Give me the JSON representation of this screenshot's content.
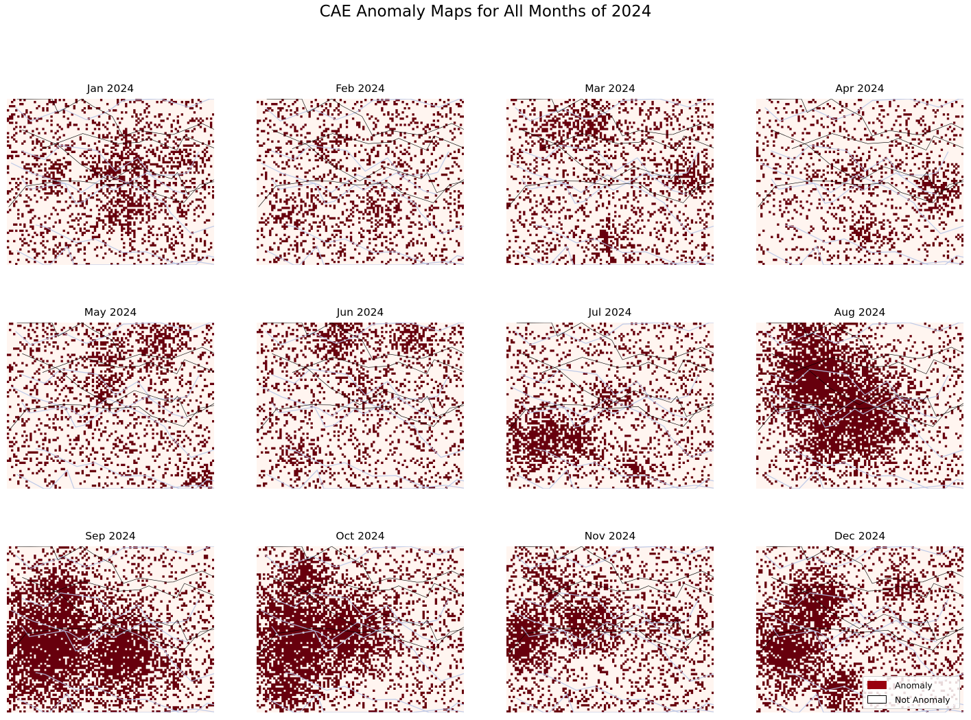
{
  "title": "CAE Anomaly Maps for All Months of 2024",
  "colors": {
    "anomaly": "#67000d",
    "not_anomaly": "#fff5f0",
    "rivers": "#b6c4e6",
    "borders": "#000000",
    "legend_anomaly_swatch": "#99000d"
  },
  "maps": [
    {
      "label": "Jan 2024",
      "seed": 11,
      "density": 0.3,
      "blobs": [
        [
          0.55,
          0.4,
          0.13,
          0.6
        ],
        [
          0.58,
          0.65,
          0.1,
          0.6
        ],
        [
          0.2,
          0.45,
          0.08,
          0.5
        ],
        [
          0.85,
          0.35,
          0.08,
          0.5
        ]
      ]
    },
    {
      "label": "Feb 2024",
      "seed": 23,
      "density": 0.26,
      "blobs": [
        [
          0.2,
          0.7,
          0.1,
          0.4
        ],
        [
          0.6,
          0.65,
          0.1,
          0.4
        ],
        [
          0.35,
          0.3,
          0.08,
          0.4
        ]
      ]
    },
    {
      "label": "Mar 2024",
      "seed": 37,
      "density": 0.28,
      "blobs": [
        [
          0.4,
          0.15,
          0.1,
          0.6
        ],
        [
          0.88,
          0.45,
          0.09,
          0.6
        ],
        [
          0.2,
          0.2,
          0.08,
          0.5
        ],
        [
          0.5,
          0.85,
          0.08,
          0.5
        ]
      ]
    },
    {
      "label": "Apr 2024",
      "seed": 41,
      "density": 0.22,
      "blobs": [
        [
          0.88,
          0.55,
          0.09,
          0.6
        ],
        [
          0.45,
          0.45,
          0.08,
          0.4
        ],
        [
          0.55,
          0.8,
          0.09,
          0.4
        ]
      ]
    },
    {
      "label": "May 2024",
      "seed": 53,
      "density": 0.28,
      "blobs": [
        [
          0.5,
          0.2,
          0.1,
          0.5
        ],
        [
          0.75,
          0.1,
          0.1,
          0.6
        ],
        [
          0.48,
          0.4,
          0.07,
          0.6
        ],
        [
          0.92,
          0.95,
          0.06,
          0.6
        ]
      ]
    },
    {
      "label": "Jun 2024",
      "seed": 67,
      "density": 0.27,
      "blobs": [
        [
          0.4,
          0.08,
          0.1,
          0.6
        ],
        [
          0.75,
          0.08,
          0.08,
          0.6
        ],
        [
          0.5,
          0.4,
          0.08,
          0.5
        ],
        [
          0.2,
          0.8,
          0.08,
          0.5
        ]
      ]
    },
    {
      "label": "Jul 2024",
      "seed": 71,
      "density": 0.24,
      "blobs": [
        [
          0.15,
          0.7,
          0.12,
          0.8
        ],
        [
          0.32,
          0.7,
          0.1,
          0.7
        ],
        [
          0.5,
          0.45,
          0.08,
          0.5
        ],
        [
          0.62,
          0.88,
          0.08,
          0.5
        ]
      ]
    },
    {
      "label": "Aug 2024",
      "seed": 83,
      "density": 0.22,
      "blobs": [
        [
          0.3,
          0.35,
          0.18,
          0.95
        ],
        [
          0.5,
          0.55,
          0.18,
          0.9
        ],
        [
          0.35,
          0.7,
          0.12,
          0.8
        ],
        [
          0.25,
          0.1,
          0.1,
          0.8
        ]
      ]
    },
    {
      "label": "Sep 2024",
      "seed": 97,
      "density": 0.26,
      "blobs": [
        [
          0.2,
          0.6,
          0.22,
          0.97
        ],
        [
          0.55,
          0.65,
          0.16,
          0.93
        ],
        [
          0.25,
          0.3,
          0.12,
          0.85
        ],
        [
          0.8,
          0.75,
          0.08,
          0.6
        ]
      ]
    },
    {
      "label": "Oct 2024",
      "seed": 103,
      "density": 0.26,
      "blobs": [
        [
          0.2,
          0.55,
          0.2,
          0.95
        ],
        [
          0.45,
          0.5,
          0.15,
          0.9
        ],
        [
          0.25,
          0.2,
          0.1,
          0.8
        ],
        [
          0.15,
          0.85,
          0.1,
          0.8
        ]
      ]
    },
    {
      "label": "Nov 2024",
      "seed": 127,
      "density": 0.32,
      "blobs": [
        [
          0.1,
          0.55,
          0.12,
          0.9
        ],
        [
          0.4,
          0.45,
          0.12,
          0.8
        ],
        [
          0.2,
          0.2,
          0.09,
          0.6
        ],
        [
          0.75,
          0.5,
          0.08,
          0.5
        ]
      ]
    },
    {
      "label": "Dec 2024",
      "seed": 131,
      "density": 0.28,
      "blobs": [
        [
          0.15,
          0.6,
          0.15,
          0.92
        ],
        [
          0.28,
          0.35,
          0.12,
          0.9
        ],
        [
          0.4,
          0.85,
          0.09,
          0.7
        ],
        [
          0.7,
          0.25,
          0.08,
          0.6
        ]
      ]
    }
  ],
  "legend": {
    "anomaly_label": "Anomaly",
    "not_anomaly_label": "Not Anomaly",
    "placement": "lower-right"
  }
}
